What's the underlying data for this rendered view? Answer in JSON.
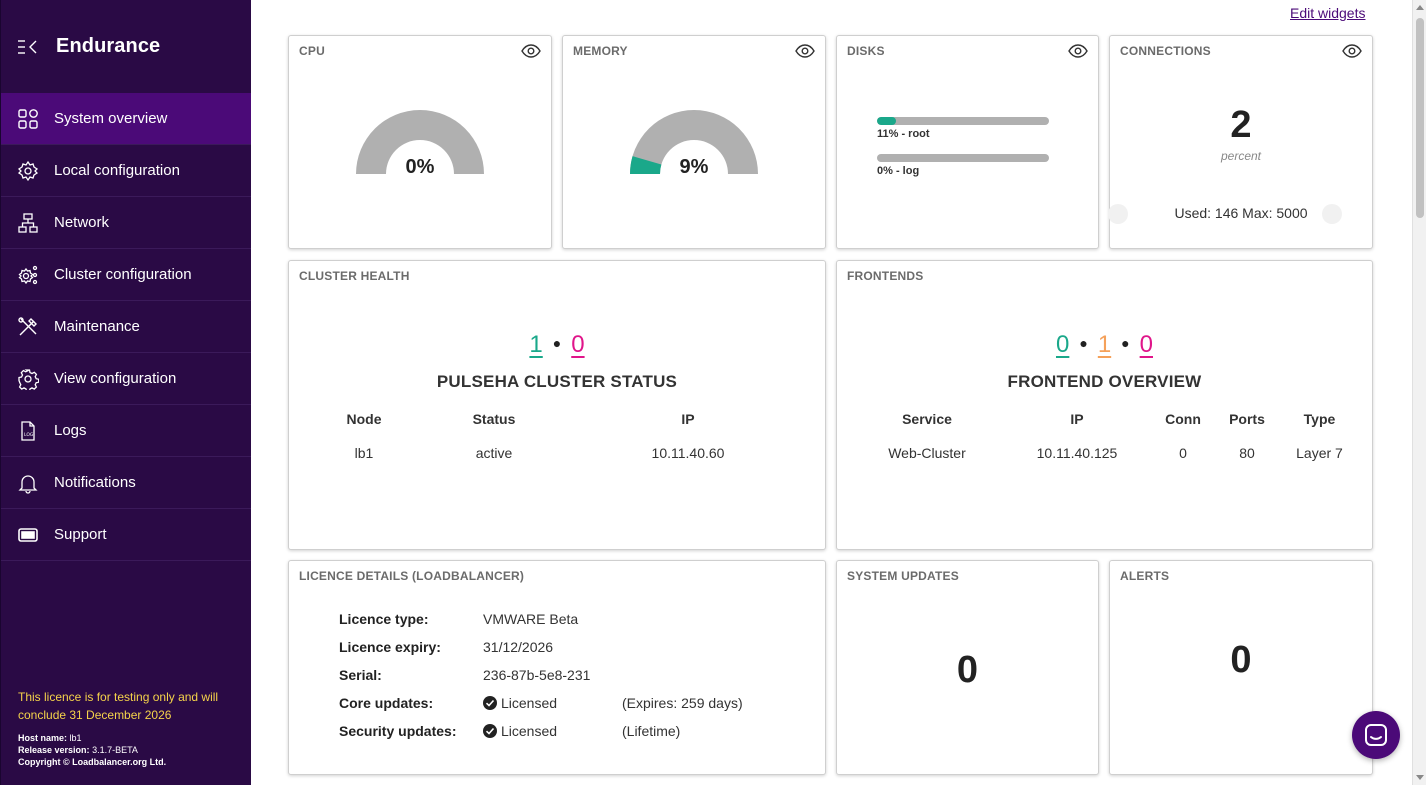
{
  "app": {
    "title": "Endurance"
  },
  "sidebar": {
    "items": [
      {
        "label": "System overview",
        "icon": "grid-icon"
      },
      {
        "label": "Local configuration",
        "icon": "gear-network-icon"
      },
      {
        "label": "Network",
        "icon": "network-icon"
      },
      {
        "label": "Cluster configuration",
        "icon": "cluster-gear-icon"
      },
      {
        "label": "Maintenance",
        "icon": "tools-icon"
      },
      {
        "label": "View configuration",
        "icon": "gear-icon"
      },
      {
        "label": "Logs",
        "icon": "log-file-icon"
      },
      {
        "label": "Notifications",
        "icon": "bell-icon"
      },
      {
        "label": "Support",
        "icon": "ticket-icon"
      }
    ],
    "active_index": 0,
    "licence_note": "This licence is for testing only and will conclude 31 December 2026",
    "host_label": "Host name:",
    "host_value": "lb1",
    "release_label": "Release version:",
    "release_value": "3.1.7-BETA",
    "copyright": "Copyright © Loadbalancer.org Ltd."
  },
  "main": {
    "edit_widgets": "Edit widgets",
    "cpu": {
      "title": "CPU",
      "value_label": "0%",
      "fraction": 0.0
    },
    "memory": {
      "title": "MEMORY",
      "value_label": "9%",
      "fraction": 0.09
    },
    "disks": {
      "title": "DISKS",
      "items": [
        {
          "label": "11% - root",
          "fraction": 0.11
        },
        {
          "label": "0% - log",
          "fraction": 0.0
        }
      ]
    },
    "connections": {
      "title": "CONNECTIONS",
      "value": "2",
      "unit": "percent",
      "used_max": "Used: 146 Max: 5000"
    },
    "cluster_health": {
      "title": "CLUSTER HEALTH",
      "count_green": "1",
      "count_pink": "0",
      "heading": "PULSEHA CLUSTER STATUS",
      "columns": [
        "Node",
        "Status",
        "IP"
      ],
      "rows": [
        [
          "lb1",
          "active",
          "10.11.40.60"
        ]
      ]
    },
    "frontends": {
      "title": "FRONTENDS",
      "count_green": "0",
      "count_orange": "1",
      "count_pink": "0",
      "heading": "FRONTEND OVERVIEW",
      "columns": [
        "Service",
        "IP",
        "Conn",
        "Ports",
        "Type"
      ],
      "rows": [
        [
          "Web-Cluster",
          "10.11.40.125",
          "0",
          "80",
          "Layer 7"
        ]
      ]
    },
    "licence": {
      "title": "LICENCE DETAILS (LOADBALANCER)",
      "rows": [
        {
          "key": "Licence type:",
          "value": "VMWARE Beta",
          "extra": ""
        },
        {
          "key": "Licence expiry:",
          "value": "31/12/2026",
          "extra": ""
        },
        {
          "key": "Serial:",
          "value": "236-87b-5e8-231",
          "extra": ""
        },
        {
          "key": "Core updates:",
          "value": "Licensed",
          "extra": "(Expires: 259 days)"
        },
        {
          "key": "Security updates:",
          "value": "Licensed",
          "extra": "(Lifetime)"
        }
      ]
    },
    "system_updates": {
      "title": "SYSTEM UPDATES",
      "value": "0"
    },
    "alerts": {
      "title": "ALERTS",
      "value": "0"
    }
  },
  "colors": {
    "sidebar_bg": "#2a0a45",
    "active_item": "#4b0a78",
    "accent_green": "#1aa88a",
    "accent_pink": "#e0158a",
    "accent_orange": "#f5a15a",
    "gauge_gray": "#b0b0b0",
    "licence_note": "#f5d34a"
  }
}
